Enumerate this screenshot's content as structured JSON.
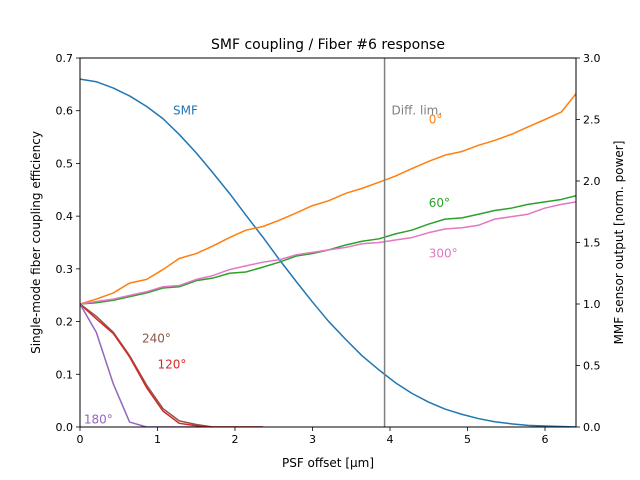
{
  "chart_data": {
    "type": "line",
    "title": "SMF coupling / Fiber #6 response",
    "xlabel": "PSF offset [μm]",
    "ylabel_left": "Single-mode fiber coupling efficiency",
    "ylabel_right": "MMF sensor output [norm. power]",
    "xlim": [
      0,
      6.4
    ],
    "ylim_left": [
      0,
      0.7
    ],
    "ylim_right": [
      0,
      3.0
    ],
    "x_ticks": [
      0,
      1,
      2,
      3,
      4,
      5,
      6
    ],
    "y_left_ticks": [
      "0.0",
      "0.1",
      "0.2",
      "0.3",
      "0.4",
      "0.5",
      "0.6",
      "0.7"
    ],
    "y_right_ticks": [
      "0.0",
      "0.5",
      "1.0",
      "1.5",
      "2.0",
      "2.5",
      "3.0"
    ],
    "vline": {
      "x": 3.93,
      "label": "Diff. lim.",
      "label_x": 4.02,
      "label_y_left": 0.6,
      "color": "#7f7f7f"
    },
    "series": [
      {
        "name": "SMF",
        "axis": "left",
        "color": "#1f77b4",
        "label": "SMF",
        "label_x": 1.2,
        "label_y": 0.6,
        "x": [
          0,
          0.21,
          0.43,
          0.64,
          0.86,
          1.07,
          1.28,
          1.5,
          1.71,
          1.93,
          2.14,
          2.36,
          2.57,
          2.79,
          3.0,
          3.21,
          3.43,
          3.64,
          3.86,
          4.07,
          4.28,
          4.5,
          4.71,
          4.93,
          5.14,
          5.35,
          5.57,
          5.78,
          6.0,
          6.21,
          6.4
        ],
        "values": [
          0.66,
          0.655,
          0.643,
          0.628,
          0.608,
          0.585,
          0.555,
          0.52,
          0.483,
          0.443,
          0.402,
          0.36,
          0.318,
          0.276,
          0.237,
          0.2,
          0.166,
          0.135,
          0.108,
          0.084,
          0.064,
          0.047,
          0.034,
          0.024,
          0.016,
          0.01,
          0.006,
          0.003,
          0.002,
          0.001,
          0.0
        ]
      },
      {
        "name": "0°",
        "axis": "right",
        "color": "#ff7f0e",
        "label": "0°",
        "label_x": 4.5,
        "label_y": 2.5,
        "x": [
          0,
          0.21,
          0.43,
          0.64,
          0.86,
          1.07,
          1.28,
          1.5,
          1.71,
          1.93,
          2.14,
          2.36,
          2.57,
          2.79,
          3.0,
          3.21,
          3.43,
          3.64,
          3.86,
          4.07,
          4.28,
          4.5,
          4.71,
          4.93,
          5.14,
          5.35,
          5.57,
          5.78,
          6.0,
          6.21,
          6.4
        ],
        "values": [
          1.0,
          1.04,
          1.09,
          1.17,
          1.2,
          1.28,
          1.37,
          1.41,
          1.47,
          1.54,
          1.6,
          1.63,
          1.68,
          1.74,
          1.8,
          1.84,
          1.9,
          1.94,
          1.99,
          2.04,
          2.1,
          2.16,
          2.21,
          2.24,
          2.29,
          2.33,
          2.38,
          2.44,
          2.5,
          2.56,
          2.71
        ]
      },
      {
        "name": "60°",
        "axis": "right",
        "color": "#2ca02c",
        "label": "60°",
        "label_x": 4.5,
        "label_y": 1.82,
        "x": [
          0,
          0.21,
          0.43,
          0.64,
          0.86,
          1.07,
          1.28,
          1.5,
          1.71,
          1.93,
          2.14,
          2.36,
          2.57,
          2.79,
          3.0,
          3.21,
          3.43,
          3.64,
          3.86,
          4.07,
          4.28,
          4.5,
          4.71,
          4.93,
          5.14,
          5.35,
          5.57,
          5.78,
          6.0,
          6.21,
          6.4
        ],
        "values": [
          1.0,
          1.01,
          1.03,
          1.06,
          1.09,
          1.13,
          1.14,
          1.19,
          1.21,
          1.25,
          1.26,
          1.3,
          1.34,
          1.39,
          1.41,
          1.44,
          1.48,
          1.51,
          1.53,
          1.57,
          1.6,
          1.65,
          1.69,
          1.7,
          1.73,
          1.76,
          1.78,
          1.81,
          1.83,
          1.85,
          1.88
        ]
      },
      {
        "name": "300°",
        "axis": "right",
        "color": "#e377c2",
        "label": "300°",
        "label_x": 4.5,
        "label_y": 1.41,
        "x": [
          0,
          0.21,
          0.43,
          0.64,
          0.86,
          1.07,
          1.28,
          1.5,
          1.71,
          1.93,
          2.14,
          2.36,
          2.57,
          2.79,
          3.0,
          3.21,
          3.43,
          3.64,
          3.86,
          4.07,
          4.28,
          4.5,
          4.71,
          4.93,
          5.14,
          5.35,
          5.57,
          5.78,
          6.0,
          6.21,
          6.4
        ],
        "values": [
          1.0,
          1.02,
          1.04,
          1.07,
          1.1,
          1.14,
          1.15,
          1.2,
          1.23,
          1.28,
          1.31,
          1.34,
          1.36,
          1.4,
          1.42,
          1.44,
          1.46,
          1.49,
          1.5,
          1.52,
          1.54,
          1.58,
          1.61,
          1.62,
          1.64,
          1.69,
          1.71,
          1.73,
          1.78,
          1.81,
          1.83
        ]
      },
      {
        "name": "240°",
        "axis": "right",
        "color": "#8c564b",
        "label": "240°",
        "label_x": 0.8,
        "label_y": 0.72,
        "x": [
          0,
          0.21,
          0.43,
          0.64,
          0.86,
          1.07,
          1.28,
          1.5,
          1.71,
          1.93,
          2.14,
          2.36
        ],
        "values": [
          1.0,
          0.9,
          0.77,
          0.58,
          0.34,
          0.15,
          0.05,
          0.02,
          0.0,
          0.0,
          0.0,
          0.0
        ]
      },
      {
        "name": "120°",
        "axis": "right",
        "color": "#d62728",
        "label": "120°",
        "label_x": 1.0,
        "label_y": 0.51,
        "x": [
          0,
          0.21,
          0.43,
          0.64,
          0.86,
          1.07,
          1.28,
          1.5,
          1.71,
          1.93,
          2.14,
          2.36
        ],
        "values": [
          1.0,
          0.88,
          0.76,
          0.57,
          0.32,
          0.13,
          0.03,
          0.01,
          0.0,
          0.0,
          0.0,
          0.0
        ]
      },
      {
        "name": "180°",
        "axis": "right",
        "color": "#9467bd",
        "label": "180°",
        "label_x": 0.05,
        "label_y": 0.06,
        "x": [
          0,
          0.21,
          0.43,
          0.64,
          0.86,
          1.07,
          1.28,
          1.5
        ],
        "values": [
          1.0,
          0.77,
          0.35,
          0.04,
          0.0,
          0.0,
          0.0,
          0.0
        ]
      }
    ]
  }
}
